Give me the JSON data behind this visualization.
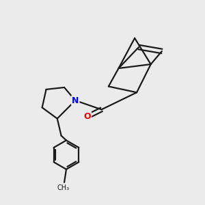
{
  "background_color": "#ebebeb",
  "bond_color": "#1a1a1a",
  "bond_width": 1.6,
  "atom_N_color": "#0000ee",
  "atom_O_color": "#ee0000",
  "figsize": [
    3.0,
    3.0
  ],
  "dpi": 100,
  "xlim": [
    0,
    10
  ],
  "ylim": [
    0,
    10
  ]
}
